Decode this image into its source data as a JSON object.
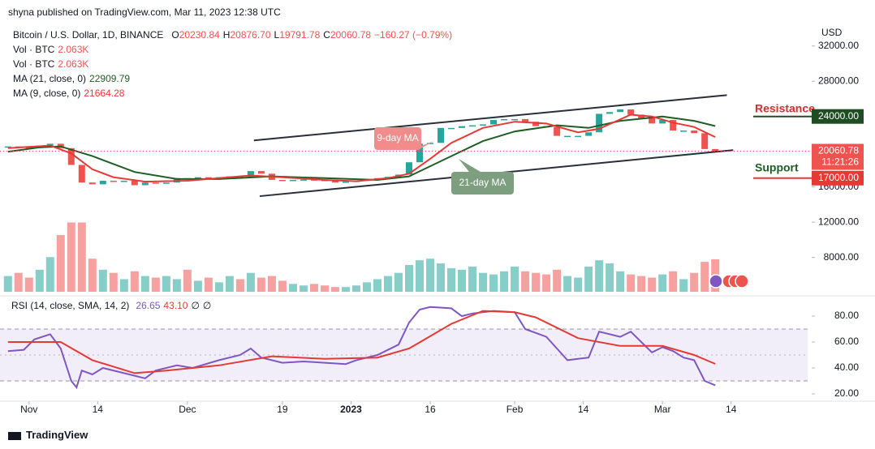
{
  "header": {
    "published": "shyna published on TradingView.com, Mar 11, 2023 12:38 UTC"
  },
  "footer": {
    "brand": "TradingView"
  },
  "chart_data": [
    {
      "type": "candlestick",
      "title": "Bitcoin / U.S. Dollar, 1D, BINANCE",
      "quote": [
        {
          "label": "O",
          "value": "20230.84"
        },
        {
          "label": "H",
          "value": "20876.70"
        },
        {
          "label": "L",
          "value": "19791.78"
        },
        {
          "label": "C",
          "value": "20060.78"
        }
      ],
      "change": "−160.27 (−0.79%)",
      "quote_color": "#ef5350",
      "indicators": [
        {
          "name": "Vol · BTC",
          "value": "2.063K"
        },
        {
          "name": "Vol · BTC",
          "value": "2.063K"
        }
      ],
      "unit": "USD",
      "up_color": "#26a69a",
      "down_color": "#ef5350",
      "x": [
        0,
        2,
        4,
        6,
        8,
        10,
        12,
        14,
        16,
        18,
        20,
        22,
        24,
        26,
        28,
        30,
        32,
        34,
        36,
        38,
        40,
        42,
        44,
        46,
        48,
        50,
        52,
        54,
        56,
        58,
        60,
        62,
        64,
        66,
        68,
        70,
        72,
        74,
        76,
        78,
        80,
        82,
        84,
        86,
        88,
        90,
        92,
        94,
        96,
        98,
        100,
        102,
        104,
        106,
        108,
        110,
        112,
        114,
        116,
        118,
        120,
        122,
        124,
        126,
        128,
        130,
        132,
        134
      ],
      "values": [
        20600,
        20500,
        20400,
        20700,
        20900,
        20400,
        18500,
        16500,
        16300,
        16700,
        16600,
        16700,
        16200,
        16500,
        16400,
        16500,
        17000,
        16900,
        17100,
        16900,
        17100,
        17200,
        17100,
        17800,
        17500,
        16800,
        16700,
        16800,
        16850,
        16800,
        16700,
        16500,
        16600,
        16700,
        16850,
        17000,
        17150,
        17400,
        18800,
        20900,
        21000,
        22700,
        22700,
        22900,
        23000,
        23100,
        23600,
        23700,
        23700,
        23400,
        22900,
        22800,
        21800,
        21800,
        21800,
        22200,
        24300,
        24500,
        24800,
        24200,
        23800,
        23200,
        23600,
        22400,
        22400,
        22100,
        20300,
        20060.78
      ],
      "volume": {
        "values": [
          1.0,
          1.2,
          0.9,
          1.4,
          2.2,
          3.6,
          4.4,
          4.4,
          2.1,
          1.4,
          1.2,
          0.8,
          1.3,
          1.0,
          0.9,
          1.0,
          0.8,
          1.4,
          0.7,
          0.9,
          0.6,
          1.0,
          0.8,
          1.2,
          0.9,
          1.0,
          0.7,
          0.5,
          0.4,
          0.5,
          0.4,
          0.3,
          0.3,
          0.4,
          0.6,
          0.8,
          1.0,
          1.2,
          1.7,
          2.0,
          2.1,
          1.8,
          1.5,
          1.4,
          1.6,
          1.2,
          1.1,
          1.3,
          1.6,
          1.3,
          1.2,
          1.1,
          1.4,
          1.0,
          0.9,
          1.6,
          2.0,
          1.8,
          1.3,
          1.1,
          1.0,
          0.9,
          1.1,
          1.3,
          0.8,
          1.2,
          1.9,
          2.063
        ],
        "ylim": [
          0,
          7
        ]
      },
      "series": [
        {
          "name": "MA (21, close, 0)",
          "color": "#1e5e24",
          "x": [
            0,
            6,
            10,
            16,
            24,
            32,
            40,
            50,
            60,
            70,
            76,
            84,
            90,
            96,
            104,
            110,
            116,
            124,
            130,
            134
          ],
          "values": [
            20000,
            20500,
            20600,
            19500,
            17700,
            16900,
            16900,
            17200,
            17000,
            16800,
            17200,
            19500,
            21200,
            22300,
            23000,
            22700,
            23500,
            24000,
            23500,
            22909.79
          ]
        },
        {
          "name": "MA (9, close, 0)",
          "color": "#e53935",
          "x": [
            0,
            8,
            12,
            16,
            20,
            26,
            34,
            40,
            46,
            52,
            60,
            66,
            72,
            76,
            80,
            84,
            90,
            96,
            102,
            108,
            112,
            118,
            122,
            126,
            130,
            134
          ],
          "values": [
            20400,
            20700,
            19800,
            18000,
            17100,
            16600,
            16700,
            17000,
            17300,
            17100,
            16800,
            16650,
            17000,
            17500,
            19200,
            21000,
            22700,
            23400,
            23200,
            22200,
            22600,
            24200,
            24000,
            23300,
            22800,
            21664.28
          ]
        }
      ],
      "xlim": [
        -1.5,
        151.5
      ],
      "ylim": [
        4100,
        34000
      ],
      "yticks": [
        {
          "value": 32000,
          "label": "32000.00"
        },
        {
          "value": 28000,
          "label": "28000.00"
        },
        {
          "value": 16000,
          "label": "16000.00"
        },
        {
          "value": 12000,
          "label": "12000.00"
        },
        {
          "value": 8000,
          "label": "8000.00"
        }
      ],
      "last_price": {
        "value": 20060.78,
        "label": "20060.78",
        "countdown": "11:21:26",
        "color": "#ef5350"
      },
      "levels": [
        {
          "text": "Resistance",
          "text_color": "#d32f2f",
          "value": 24000,
          "label": "24000.00",
          "color": "#1e4d22"
        },
        {
          "text": "Support",
          "text_color": "#1e5e24",
          "value": 17000,
          "label": "17000.00",
          "color": "#e53935"
        }
      ],
      "channel": [
        {
          "x": [
            46.6,
            136.2
          ],
          "values": [
            21280,
            26420
          ]
        },
        {
          "x": [
            47.7,
            137.4
          ],
          "values": [
            14950,
            20180
          ]
        }
      ],
      "callouts": [
        {
          "text": "9-day MA",
          "color": "#f28b8b"
        },
        {
          "text": "21-day MA",
          "color": "#7d9f80"
        }
      ]
    },
    {
      "type": "line",
      "title": "RSI (14, close, SMA, 14, 2)",
      "legend_values": [
        {
          "text": "26.65",
          "color": "#7e57c2"
        },
        {
          "text": "43.10",
          "color": "#e53935"
        },
        {
          "text": "∅",
          "color": "#131722"
        },
        {
          "text": "∅",
          "color": "#131722"
        }
      ],
      "series": [
        {
          "color": "#7e57c2",
          "x": [
            0,
            3,
            5,
            8,
            10,
            12,
            13,
            14,
            16,
            18,
            22,
            26,
            28,
            32,
            35,
            40,
            44,
            46,
            48,
            52,
            56,
            60,
            64,
            66,
            70,
            74,
            76,
            78,
            80,
            84,
            86,
            88,
            92,
            96,
            98,
            102,
            104,
            106,
            108,
            110,
            112,
            116,
            118,
            120,
            122,
            124,
            126,
            128,
            130,
            132,
            134
          ],
          "values": [
            53,
            54,
            62,
            66,
            55,
            30,
            25,
            38,
            35,
            40,
            36,
            32,
            38,
            42,
            40,
            46,
            50,
            55,
            48,
            44,
            45,
            44,
            43,
            46,
            50,
            58,
            75,
            85,
            87,
            86,
            80,
            82,
            84,
            83,
            70,
            64,
            55,
            46,
            47,
            48,
            68,
            64,
            68,
            60,
            52,
            56,
            53,
            48,
            46,
            30,
            26.65
          ]
        },
        {
          "color": "#e53935",
          "x": [
            0,
            10,
            16,
            24,
            30,
            40,
            50,
            60,
            70,
            76,
            84,
            90,
            96,
            100,
            108,
            116,
            124,
            130,
            134
          ],
          "values": [
            60,
            60,
            46,
            36,
            38,
            42,
            49,
            47,
            48,
            55,
            74,
            84,
            83,
            79,
            63,
            57,
            57,
            50,
            43.1
          ]
        }
      ],
      "band": [
        30,
        70
      ],
      "midline": 50,
      "band_color": "#7e57c2",
      "xlim": [
        -1.5,
        151.5
      ],
      "ylim": [
        16.25,
        91.25
      ],
      "yticks": [
        {
          "value": 80,
          "label": "80.00"
        },
        {
          "value": 60,
          "label": "60.00"
        },
        {
          "value": 40,
          "label": "40.00"
        },
        {
          "value": 20,
          "label": "20.00"
        }
      ],
      "xticks": [
        {
          "value": 4,
          "label": "Nov"
        },
        {
          "value": 17,
          "label": "14"
        },
        {
          "value": 34,
          "label": "Dec"
        },
        {
          "value": 52,
          "label": "19"
        },
        {
          "value": 65,
          "label": "2023"
        },
        {
          "value": 80,
          "label": "16"
        },
        {
          "value": 96,
          "label": "Feb"
        },
        {
          "value": 109,
          "label": "14"
        },
        {
          "value": 124,
          "label": "Mar"
        },
        {
          "value": 137,
          "label": "14"
        }
      ]
    }
  ]
}
